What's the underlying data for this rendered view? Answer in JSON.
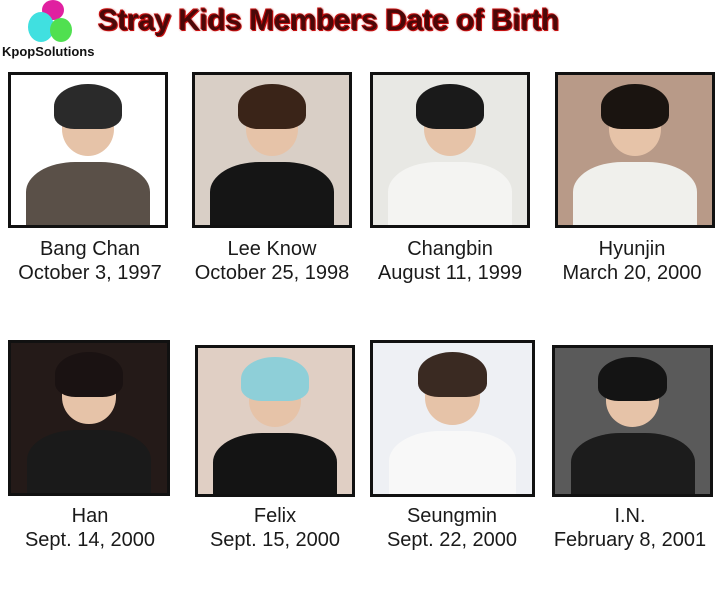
{
  "logo": {
    "text": "KpopSolutions"
  },
  "title": "Stray Kids Members Date of Birth",
  "members": [
    {
      "name": "Bang Chan",
      "dob": "October 3, 1997"
    },
    {
      "name": "Lee Know",
      "dob": "October 25, 1998"
    },
    {
      "name": "Changbin",
      "dob": "August 11, 1999"
    },
    {
      "name": "Hyunjin",
      "dob": "March 20, 2000"
    },
    {
      "name": "Han",
      "dob": "Sept. 14, 2000"
    },
    {
      "name": "Felix",
      "dob": "Sept. 15, 2000"
    },
    {
      "name": "Seungmin",
      "dob": "Sept. 22, 2000"
    },
    {
      "name": "I.N.",
      "dob": "February 8, 2001"
    }
  ]
}
